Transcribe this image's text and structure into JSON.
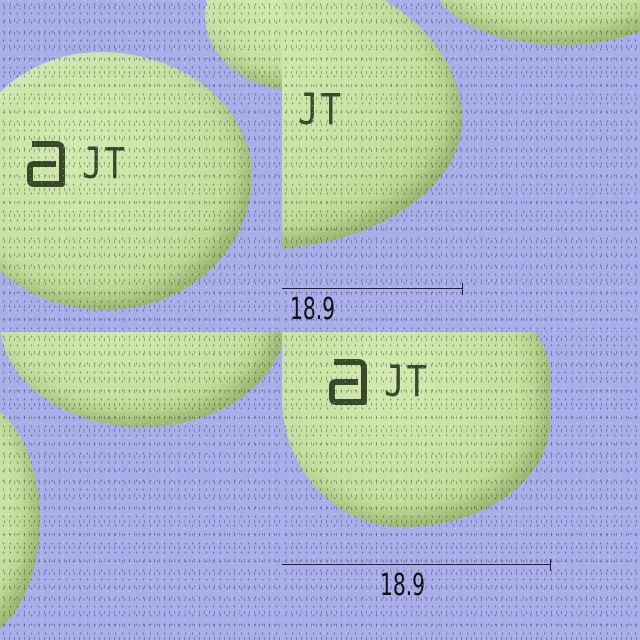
{
  "panels": [
    {
      "imprint_text": "JT",
      "logo_icon": "abbott-logo-icon"
    },
    {
      "imprint_text": "JT"
    },
    {
      "imprint_text": "JT",
      "logo_icon": "abbott-logo-icon"
    }
  ],
  "scale_bars": [
    {
      "label": "18.9"
    },
    {
      "label": "18.9"
    }
  ],
  "colors": {
    "background": "#a9adea",
    "tablet": "#c4e09e",
    "imprint": "#3c4a2e"
  }
}
